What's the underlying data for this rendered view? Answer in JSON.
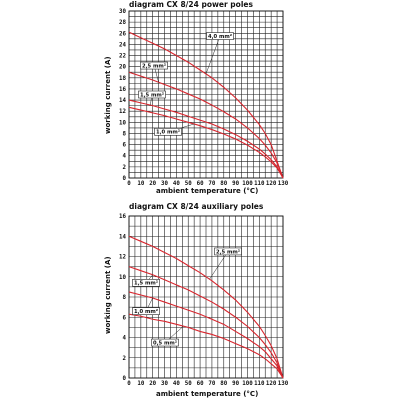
{
  "chart_data": [
    {
      "type": "line",
      "title": "diagram CX 8/24 power poles",
      "xlabel": "ambient temperature (°C)",
      "ylabel": "working current (A)",
      "xlim": [
        0,
        130
      ],
      "ylim": [
        0,
        30
      ],
      "x_ticks": [
        "0",
        "10",
        "20",
        "30",
        "40",
        "50",
        "60",
        "70",
        "80",
        "90",
        "100",
        "110",
        "120",
        "130"
      ],
      "y_ticks": [
        "0",
        "2",
        "4",
        "6",
        "8",
        "10",
        "12",
        "14",
        "16",
        "18",
        "20",
        "22",
        "24",
        "26",
        "28",
        "30"
      ],
      "grid": true,
      "series": [
        {
          "name": "4,0 mm²",
          "x": [
            0,
            10,
            20,
            30,
            40,
            50,
            60,
            70,
            80,
            90,
            100,
            110,
            115,
            120,
            125,
            130
          ],
          "y": [
            26.2,
            25.2,
            24.2,
            23.2,
            22.0,
            20.8,
            19.4,
            18.0,
            16.3,
            14.4,
            12.2,
            9.6,
            8.0,
            6.0,
            3.0,
            0
          ]
        },
        {
          "name": "2,5 mm²",
          "x": [
            0,
            10,
            20,
            30,
            40,
            50,
            60,
            70,
            80,
            90,
            100,
            110,
            115,
            120,
            125,
            130
          ],
          "y": [
            19.0,
            18.3,
            17.6,
            16.8,
            16.0,
            15.1,
            14.2,
            13.1,
            11.9,
            10.6,
            9.0,
            7.1,
            5.9,
            4.5,
            2.7,
            0
          ]
        },
        {
          "name": "1,5 mm²",
          "x": [
            0,
            10,
            20,
            30,
            40,
            50,
            60,
            70,
            80,
            90,
            100,
            110,
            115,
            120,
            125,
            130
          ],
          "y": [
            14.0,
            13.5,
            13.0,
            12.4,
            11.8,
            11.1,
            10.4,
            9.7,
            8.8,
            7.8,
            6.6,
            5.2,
            4.3,
            3.3,
            2.0,
            0
          ]
        },
        {
          "name": "1,0 mm²",
          "x": [
            0,
            10,
            20,
            30,
            40,
            50,
            60,
            70,
            80,
            90,
            100,
            110,
            115,
            120,
            125,
            130
          ],
          "y": [
            12.7,
            12.2,
            11.7,
            11.2,
            10.6,
            10.0,
            9.4,
            8.7,
            7.9,
            7.0,
            5.9,
            4.6,
            3.8,
            2.9,
            1.8,
            0
          ]
        }
      ],
      "annotations": [
        {
          "text": "4,0 mm²",
          "series": 0
        },
        {
          "text": "2,5 mm²",
          "series": 1
        },
        {
          "text": "1,5 mm²",
          "series": 2
        },
        {
          "text": "1,0 mm²",
          "series": 3
        }
      ]
    },
    {
      "type": "line",
      "title": "diagram CX 8/24 auxiliary poles",
      "xlabel": "ambient temperature (°C)",
      "ylabel": "working current (A)",
      "xlim": [
        0,
        130
      ],
      "ylim": [
        0,
        16
      ],
      "x_ticks": [
        "0",
        "10",
        "20",
        "30",
        "40",
        "50",
        "60",
        "70",
        "80",
        "90",
        "100",
        "110",
        "120",
        "130"
      ],
      "y_ticks": [
        "0",
        "2",
        "4",
        "6",
        "8",
        "10",
        "12",
        "14",
        "16"
      ],
      "grid": true,
      "series": [
        {
          "name": "2,5 mm²",
          "x": [
            0,
            10,
            20,
            30,
            40,
            50,
            60,
            70,
            80,
            90,
            100,
            110,
            115,
            120,
            125,
            130
          ],
          "y": [
            14.0,
            13.5,
            13.0,
            12.4,
            11.8,
            11.1,
            10.4,
            9.6,
            8.7,
            7.7,
            6.5,
            5.1,
            4.2,
            3.2,
            1.9,
            0
          ]
        },
        {
          "name": "1,5 mm²",
          "x": [
            0,
            10,
            20,
            30,
            40,
            50,
            60,
            70,
            80,
            90,
            100,
            110,
            115,
            120,
            125,
            130
          ],
          "y": [
            11.0,
            10.6,
            10.2,
            9.7,
            9.2,
            8.7,
            8.1,
            7.5,
            6.8,
            6.0,
            5.1,
            4.0,
            3.3,
            2.5,
            1.5,
            0
          ]
        },
        {
          "name": "1,0 mm²",
          "x": [
            0,
            10,
            20,
            30,
            40,
            50,
            60,
            70,
            80,
            90,
            100,
            110,
            115,
            120,
            125,
            130
          ],
          "y": [
            8.5,
            8.2,
            7.9,
            7.5,
            7.1,
            6.7,
            6.3,
            5.8,
            5.3,
            4.6,
            3.9,
            3.1,
            2.6,
            1.9,
            1.2,
            0
          ]
        },
        {
          "name": "0,5 mm²",
          "x": [
            0,
            10,
            20,
            30,
            40,
            50,
            60,
            70,
            80,
            90,
            100,
            110,
            115,
            120,
            125,
            130
          ],
          "y": [
            6.3,
            6.1,
            5.8,
            5.6,
            5.3,
            5.0,
            4.6,
            4.3,
            3.9,
            3.4,
            2.9,
            2.3,
            1.9,
            1.4,
            0.9,
            0
          ]
        }
      ],
      "annotations": [
        {
          "text": "2,5 mm²",
          "series": 0
        },
        {
          "text": "1,5 mm²",
          "series": 1
        },
        {
          "text": "1,0 mm²",
          "series": 2
        },
        {
          "text": "0,5 mm²",
          "series": 3
        }
      ]
    }
  ]
}
